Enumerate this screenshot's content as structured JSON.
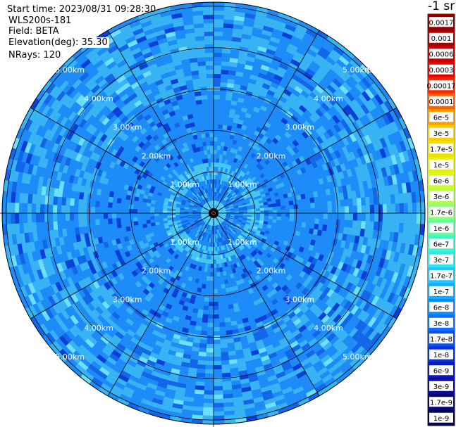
{
  "header": {
    "start_time": "Start time: 2023/08/31 09:28:30",
    "instrument": "WLS200s-181",
    "field": "Field: BETA",
    "elevation": "Elevation(deg): 35.30",
    "nrays": "NRays: 120"
  },
  "chart_data": {
    "type": "heatmap",
    "projection": "polar-ppi",
    "field": "BETA",
    "elevation_deg": 35.3,
    "n_rays": 120,
    "range_rings_km": [
      1,
      2,
      3,
      4,
      5
    ],
    "ring_labels": [
      "1.00km",
      "2.00km",
      "3.00km",
      "4.00km",
      "5.00km"
    ],
    "spokes_deg": [
      0,
      30,
      60,
      90,
      120,
      150,
      180,
      210,
      240,
      270,
      300,
      330
    ],
    "max_range_km": 5.1,
    "colorbar": {
      "title": "-1 sr",
      "ticks": [
        "0.0017",
        "0.001",
        "0.0006",
        "0.0003",
        "0.00017",
        "0.0001",
        "6e-5",
        "3e-5",
        "1.7e-5",
        "1e-5",
        "6e-6",
        "3e-6",
        "1.7e-6",
        "1e-6",
        "6e-7",
        "3e-7",
        "1.7e-7",
        "1e-7",
        "6e-8",
        "3e-8",
        "1.7e-8",
        "1e-8",
        "6e-9",
        "3e-9",
        "1.7e-9",
        "1e-9"
      ],
      "colors": [
        "#8c0000",
        "#a80000",
        "#c80000",
        "#e80000",
        "#ff2400",
        "#ff6000",
        "#ff9c00",
        "#ffc800",
        "#f0e000",
        "#e8f000",
        "#d2f81e",
        "#b4ff46",
        "#8cff78",
        "#5aff9e",
        "#3cf8c8",
        "#28e8f0",
        "#1ec8ff",
        "#14a8ff",
        "#0a8cff",
        "#0a70ff",
        "#0a50f0",
        "#0a30d8",
        "#0a18c0",
        "#080aa0",
        "#060678",
        "#040450"
      ]
    },
    "field_colors": {
      "outer_light": "#38b4f4",
      "mid_blue": "#1e8cf8",
      "deep_blue": "#1466e8",
      "inner_cyan": "#46c8f0",
      "dark_speckle": "#0a40d8",
      "bright_speckle": "#6ee0ff"
    }
  }
}
